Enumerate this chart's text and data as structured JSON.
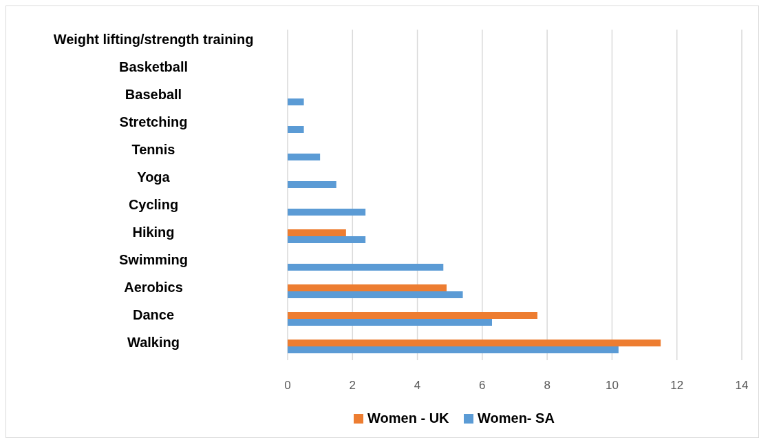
{
  "chart_data": {
    "type": "bar",
    "orientation": "horizontal",
    "categories": [
      "Weight lifting/strength training",
      "Basketball",
      "Baseball",
      "Stretching",
      "Tennis",
      "Yoga",
      "Cycling",
      "Hiking",
      "Swimming",
      "Aerobics",
      "Dance",
      "Walking"
    ],
    "series": [
      {
        "name": "Women - UK",
        "color": "#ed7d31",
        "values": [
          null,
          null,
          null,
          null,
          null,
          null,
          null,
          1.8,
          null,
          4.9,
          7.7,
          11.5
        ]
      },
      {
        "name": "Women- SA",
        "color": "#5b9bd5",
        "values": [
          null,
          null,
          0.5,
          0.5,
          1.0,
          1.5,
          2.4,
          2.4,
          4.8,
          5.4,
          6.3,
          10.2
        ]
      }
    ],
    "xlim": [
      0,
      14
    ],
    "xticks": [
      0,
      2,
      4,
      6,
      8,
      10,
      12,
      14
    ],
    "grid": "x",
    "legend": "bottom"
  }
}
